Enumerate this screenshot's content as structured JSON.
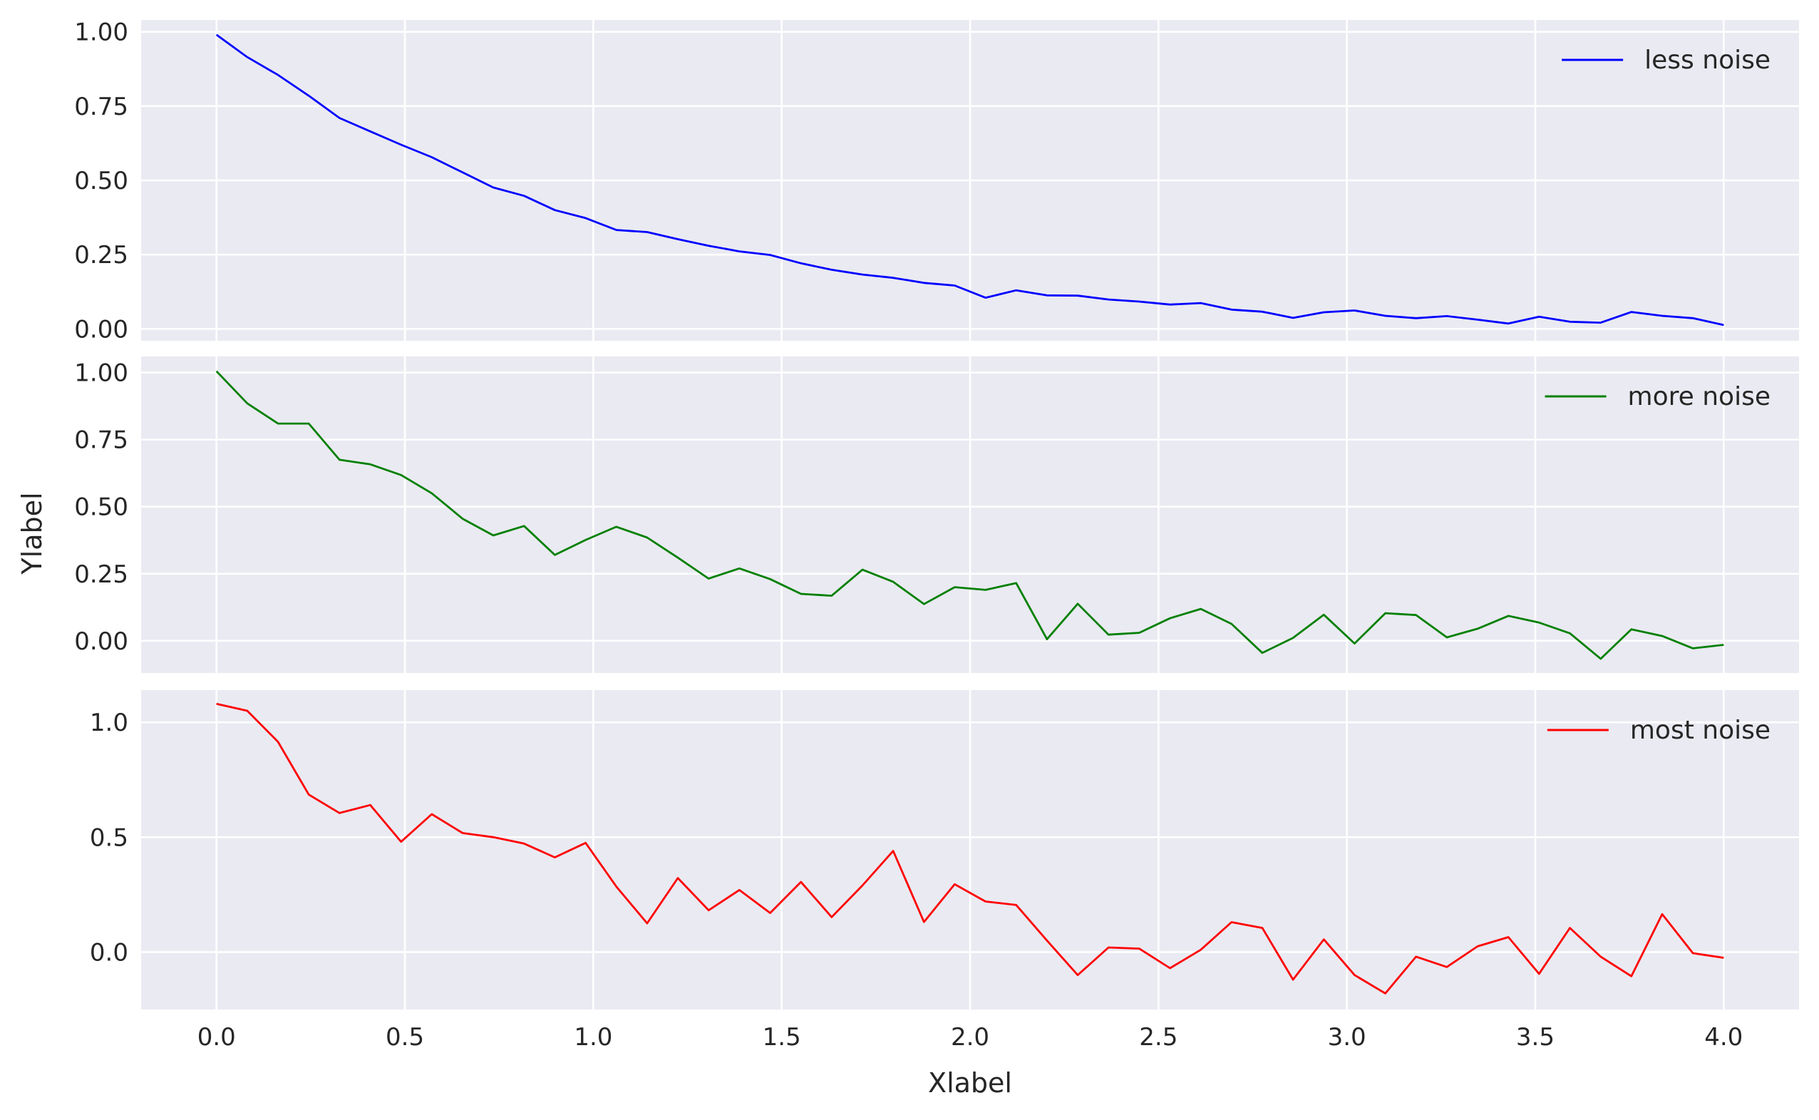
{
  "chart_data": {
    "type": "line",
    "xlabel": "Xlabel",
    "ylabel": "Ylabel",
    "xlim": [
      -0.2,
      4.2
    ],
    "xticks": [
      "0.0",
      "0.5",
      "1.0",
      "1.5",
      "2.0",
      "2.5",
      "3.0",
      "3.5",
      "4.0"
    ],
    "xtick_values": [
      0,
      0.5,
      1.0,
      1.5,
      2.0,
      2.5,
      3.0,
      3.5,
      4.0
    ],
    "x_start": 0,
    "x_end": 4,
    "panels": [
      {
        "legend": "less noise",
        "legend_position": "upper right",
        "color": "#0000ff",
        "ylim": [
          -0.04,
          1.04
        ],
        "yticks": [
          "0.00",
          "0.25",
          "0.50",
          "0.75",
          "1.00"
        ],
        "ytick_values": [
          0,
          0.25,
          0.5,
          0.75,
          1.0
        ],
        "values": [
          0.99,
          0.915,
          0.855,
          0.785,
          0.71,
          0.665,
          0.62,
          0.578,
          0.527,
          0.476,
          0.448,
          0.4,
          0.373,
          0.333,
          0.326,
          0.302,
          0.28,
          0.261,
          0.249,
          0.221,
          0.199,
          0.183,
          0.172,
          0.155,
          0.146,
          0.105,
          0.13,
          0.113,
          0.112,
          0.099,
          0.092,
          0.082,
          0.087,
          0.065,
          0.058,
          0.037,
          0.056,
          0.062,
          0.044,
          0.036,
          0.043,
          0.031,
          0.018,
          0.041,
          0.024,
          0.021,
          0.057,
          0.044,
          0.036,
          0.013
        ]
      },
      {
        "legend": "more noise",
        "legend_position": "upper right",
        "color": "#008000",
        "ylim": [
          -0.12,
          1.06
        ],
        "yticks": [
          "0.00",
          "0.25",
          "0.50",
          "0.75",
          "1.00"
        ],
        "ytick_values": [
          0,
          0.25,
          0.5,
          0.75,
          1.0
        ],
        "values": [
          1.005,
          0.885,
          0.81,
          0.81,
          0.675,
          0.658,
          0.618,
          0.55,
          0.455,
          0.393,
          0.428,
          0.32,
          0.376,
          0.425,
          0.385,
          0.31,
          0.232,
          0.27,
          0.23,
          0.175,
          0.168,
          0.265,
          0.22,
          0.137,
          0.2,
          0.19,
          0.215,
          0.006,
          0.138,
          0.023,
          0.03,
          0.084,
          0.119,
          0.063,
          -0.045,
          0.011,
          0.097,
          -0.01,
          0.103,
          0.096,
          0.013,
          0.045,
          0.093,
          0.068,
          0.028,
          -0.067,
          0.043,
          0.018,
          -0.028,
          -0.015
        ]
      },
      {
        "legend": "most noise",
        "legend_position": "upper right",
        "color": "#ff0000",
        "ylim": [
          -0.25,
          1.14
        ],
        "yticks": [
          "0.0",
          "0.5",
          "1.0"
        ],
        "ytick_values": [
          0,
          0.5,
          1.0
        ],
        "values": [
          1.08,
          1.05,
          0.915,
          0.685,
          0.605,
          0.64,
          0.48,
          0.6,
          0.518,
          0.5,
          0.472,
          0.412,
          0.475,
          0.285,
          0.125,
          0.322,
          0.182,
          0.27,
          0.17,
          0.305,
          0.152,
          0.29,
          0.44,
          0.131,
          0.295,
          0.22,
          0.205,
          0.05,
          -0.1,
          0.02,
          0.015,
          -0.07,
          0.01,
          0.13,
          0.105,
          -0.12,
          0.055,
          -0.1,
          -0.18,
          -0.02,
          -0.065,
          0.025,
          0.065,
          -0.095,
          0.105,
          -0.02,
          -0.105,
          0.165,
          -0.005,
          -0.025
        ]
      }
    ]
  }
}
